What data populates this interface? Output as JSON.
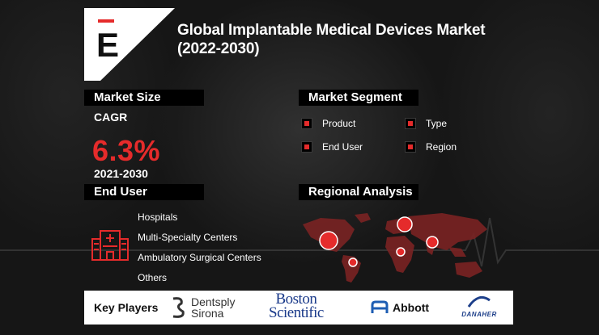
{
  "title_line1": "Global Implantable Medical Devices Market",
  "title_line2": "(2022-2030)",
  "logo": {
    "letter": "E",
    "accent": "#e52b2b"
  },
  "market_size": {
    "header": "Market Size",
    "cagr_label": "CAGR",
    "cagr_value": "6.3%",
    "period": "2021-2030"
  },
  "market_segment": {
    "header": "Market Segment",
    "items": [
      "Product",
      "Type",
      "End User",
      "Region"
    ]
  },
  "end_user": {
    "header": "End User",
    "icon": "hospital-icon",
    "items": [
      "Hospitals",
      "Multi-Specialty Centers",
      "Ambulatory Surgical Centers",
      "Others"
    ]
  },
  "regional_analysis": {
    "header": "Regional Analysis",
    "icon": "world-map-icon"
  },
  "key_players": {
    "label": "Key Players",
    "brands": {
      "dentsply_line1": "Dentsply",
      "dentsply_line2": "Sirona",
      "boston_line1": "Boston",
      "boston_line2": "Scientific",
      "abbott": "Abbott",
      "danaher": "DANAHER"
    }
  },
  "colors": {
    "accent": "#e52b2b",
    "background": "#161616",
    "header_bg": "#000000"
  }
}
